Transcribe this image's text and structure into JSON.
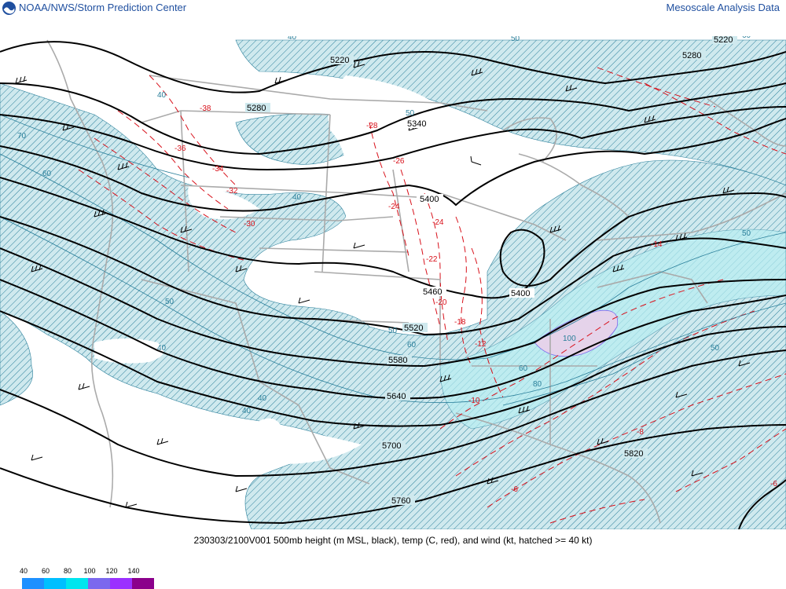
{
  "header": {
    "left_title": "NOAA/NWS/Storm Prediction Center",
    "right_title": "Mesoscale Analysis Data"
  },
  "caption": "230303/2100V001 500mb height (m MSL, black), temp (C, red), and wind (kt, hatched >= 40 kt)",
  "colors": {
    "hatch_fill": "#cfe9ee",
    "hatch_line": "#2a7f9a",
    "height_line": "#000000",
    "temp_line": "#d8101a",
    "map_boundaries": "#aaaaaa",
    "title_text": "#1f4f9f"
  },
  "height_labels": [
    "5220",
    "5280",
    "5340",
    "5400",
    "5460",
    "5520",
    "5580",
    "5640",
    "5700",
    "5760",
    "5220",
    "5280",
    "5400",
    "5820"
  ],
  "temp_labels": [
    "-38",
    "-36",
    "-34",
    "-32",
    "-30",
    "-28",
    "-26",
    "-24",
    "-24",
    "-22",
    "-20",
    "-18",
    "-14",
    "-12",
    "-10",
    "-8",
    "-6",
    "-6"
  ],
  "wind_labels": [
    "40",
    "40",
    "40",
    "40",
    "40",
    "40",
    "50",
    "50",
    "50",
    "50",
    "50",
    "50",
    "60",
    "60",
    "60",
    "60",
    "70",
    "80",
    "100"
  ],
  "legend": [
    {
      "label": "40",
      "color": "#1e90ff"
    },
    {
      "label": "60",
      "color": "#00bfff"
    },
    {
      "label": "80",
      "color": "#00e5ee"
    },
    {
      "label": "100",
      "color": "#7b68ee"
    },
    {
      "label": "120",
      "color": "#9b30ff"
    },
    {
      "label": "140",
      "color": "#8b008b"
    }
  ]
}
